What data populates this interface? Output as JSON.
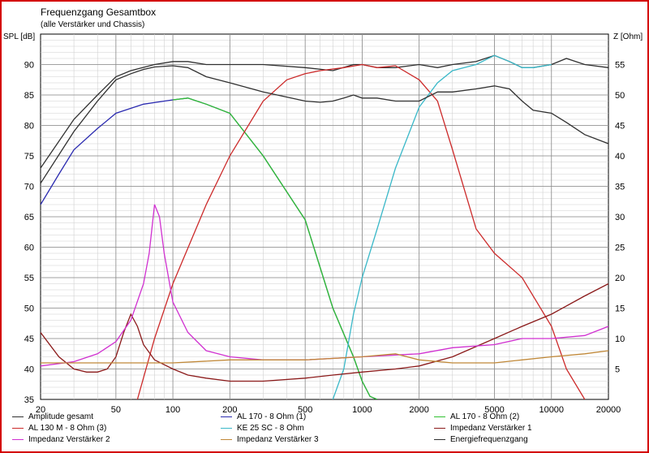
{
  "header": {
    "title": "Frequenzgang Gesamtbox",
    "subtitle": "(alle Verstärker und Chassis)"
  },
  "chart_data": {
    "type": "line",
    "title": "Frequenzgang Gesamtbox",
    "subtitle": "(alle Verstärker und Chassis)",
    "ylabel": "SPL [dB]",
    "y2label": "Z [Ohm]",
    "x_scale": "log",
    "xlim": [
      20,
      20000
    ],
    "ylim": [
      35,
      95
    ],
    "y2lim": [
      0,
      60
    ],
    "x_ticks": [
      20,
      50,
      100,
      200,
      500,
      1000,
      2000,
      5000,
      10000,
      20000
    ],
    "y_ticks": [
      35,
      40,
      45,
      50,
      55,
      60,
      65,
      70,
      75,
      80,
      85,
      90
    ],
    "y2_ticks": [
      5,
      10,
      15,
      20,
      25,
      30,
      35,
      40,
      45,
      50,
      55
    ],
    "grid": true,
    "legend_position": "bottom",
    "series": [
      {
        "name": "Amplitude gesamt",
        "axis": "left",
        "color": "#303030",
        "x": [
          20,
          30,
          40,
          50,
          60,
          80,
          100,
          120,
          150,
          200,
          300,
          500,
          700,
          900,
          1000,
          1200,
          1500,
          2000,
          2500,
          3000,
          4000,
          5000,
          6000,
          7000,
          8000,
          10000,
          12000,
          15000,
          20000
        ],
        "y": [
          73,
          81,
          85,
          88,
          89,
          90,
          90.5,
          90.5,
          90,
          90,
          90,
          89.5,
          89,
          90,
          90,
          89.5,
          89.5,
          90,
          89.5,
          90,
          90.5,
          91.5,
          90.5,
          89.5,
          89.5,
          90,
          91,
          90,
          89.5
        ]
      },
      {
        "name": "AL 170 - 8 Ohm (1)",
        "axis": "left",
        "color": "#2b2bb0",
        "x": [
          20,
          25,
          30,
          40,
          50,
          70,
          100,
          120,
          150,
          200,
          300,
          500,
          700,
          900,
          1000,
          1100,
          1200
        ],
        "y": [
          67,
          72,
          76,
          79.5,
          82,
          83.5,
          84.2,
          84.5,
          83.5,
          82,
          75,
          64.5,
          50,
          42,
          38,
          35.5,
          35
        ]
      },
      {
        "name": "AL 170 - 8 Ohm (2)",
        "axis": "left",
        "color": "#30c030",
        "x": [
          100,
          120,
          150,
          200,
          300,
          500,
          700,
          900,
          1000,
          1100,
          1200
        ],
        "y": [
          84.2,
          84.5,
          83.5,
          82,
          75,
          64.5,
          50,
          42,
          38,
          35.5,
          35
        ]
      },
      {
        "name": "AL 130 M - 8 Ohm (3)",
        "axis": "left",
        "color": "#cc2a2a",
        "x": [
          65,
          80,
          100,
          150,
          200,
          300,
          400,
          500,
          600,
          800,
          1000,
          1200,
          1500,
          2000,
          2500,
          3000,
          4000,
          5000,
          7000,
          10000,
          12000,
          15000
        ],
        "y": [
          35,
          45,
          54,
          67,
          75,
          84,
          87.5,
          88.5,
          89,
          89.5,
          90,
          89.5,
          89.8,
          87.5,
          84,
          76,
          63,
          59,
          55,
          47,
          40,
          35
        ]
      },
      {
        "name": "KE 25 SC - 8 Ohm",
        "axis": "left",
        "color": "#3ab8c8",
        "x": [
          700,
          800,
          900,
          1000,
          1200,
          1500,
          2000,
          2500,
          3000,
          4000,
          5000,
          6000,
          7000,
          8000,
          10000
        ],
        "y": [
          35,
          40,
          49,
          55,
          63,
          73,
          83,
          87,
          89,
          90,
          91.5,
          90.5,
          89.5,
          89.5,
          90
        ]
      },
      {
        "name": "Impedanz Verstärker 1",
        "axis": "right",
        "color": "#8b1a1a",
        "x": [
          20,
          25,
          30,
          35,
          40,
          45,
          50,
          55,
          60,
          65,
          70,
          80,
          100,
          120,
          150,
          200,
          300,
          500,
          700,
          1000,
          1500,
          2000,
          3000,
          5000,
          7000,
          10000,
          15000,
          20000
        ],
        "y": [
          11,
          7,
          5,
          4.5,
          4.5,
          5,
          7,
          11,
          14,
          12,
          9,
          6.5,
          5,
          4,
          3.5,
          3,
          3,
          3.5,
          4,
          4.5,
          5,
          5.5,
          7,
          10,
          12,
          14,
          17,
          19
        ]
      },
      {
        "name": "Impedanz Verstärker 2",
        "axis": "right",
        "color": "#d030d0",
        "x": [
          20,
          30,
          40,
          50,
          60,
          70,
          75,
          80,
          85,
          90,
          100,
          120,
          150,
          200,
          300,
          500,
          1000,
          2000,
          3000,
          5000,
          7000,
          10000,
          15000,
          20000
        ],
        "y": [
          5.5,
          6.2,
          7.5,
          9.5,
          13,
          19,
          24,
          32,
          30,
          24,
          16,
          11,
          8,
          7,
          6.5,
          6.5,
          7,
          7.5,
          8.5,
          9,
          10,
          10,
          10.5,
          12
        ]
      },
      {
        "name": "Impedanz Verstärker 3",
        "axis": "right",
        "color": "#c08838",
        "x": [
          20,
          50,
          100,
          200,
          300,
          500,
          1000,
          1500,
          2000,
          3000,
          5000,
          7000,
          10000,
          15000,
          20000
        ],
        "y": [
          6,
          6,
          6,
          6.5,
          6.5,
          6.5,
          7,
          7.5,
          6.5,
          6,
          6,
          6.5,
          7,
          7.5,
          8
        ]
      },
      {
        "name": "Energiefrequenzgang",
        "axis": "left",
        "color": "#303030",
        "x": [
          20,
          30,
          40,
          50,
          60,
          70,
          80,
          100,
          120,
          150,
          200,
          300,
          500,
          600,
          700,
          800,
          900,
          1000,
          1200,
          1500,
          2000,
          2500,
          3000,
          4000,
          5000,
          6000,
          7000,
          8000,
          10000,
          12000,
          15000,
          20000
        ],
        "y": [
          70.5,
          79,
          84,
          87.5,
          88.5,
          89.2,
          89.6,
          89.8,
          89.5,
          88,
          87,
          85.5,
          84,
          83.8,
          84,
          84.5,
          85,
          84.5,
          84.5,
          84,
          84,
          85.5,
          85.5,
          86,
          86.5,
          86,
          84,
          82.5,
          82,
          80.5,
          78.5,
          77
        ]
      }
    ]
  }
}
